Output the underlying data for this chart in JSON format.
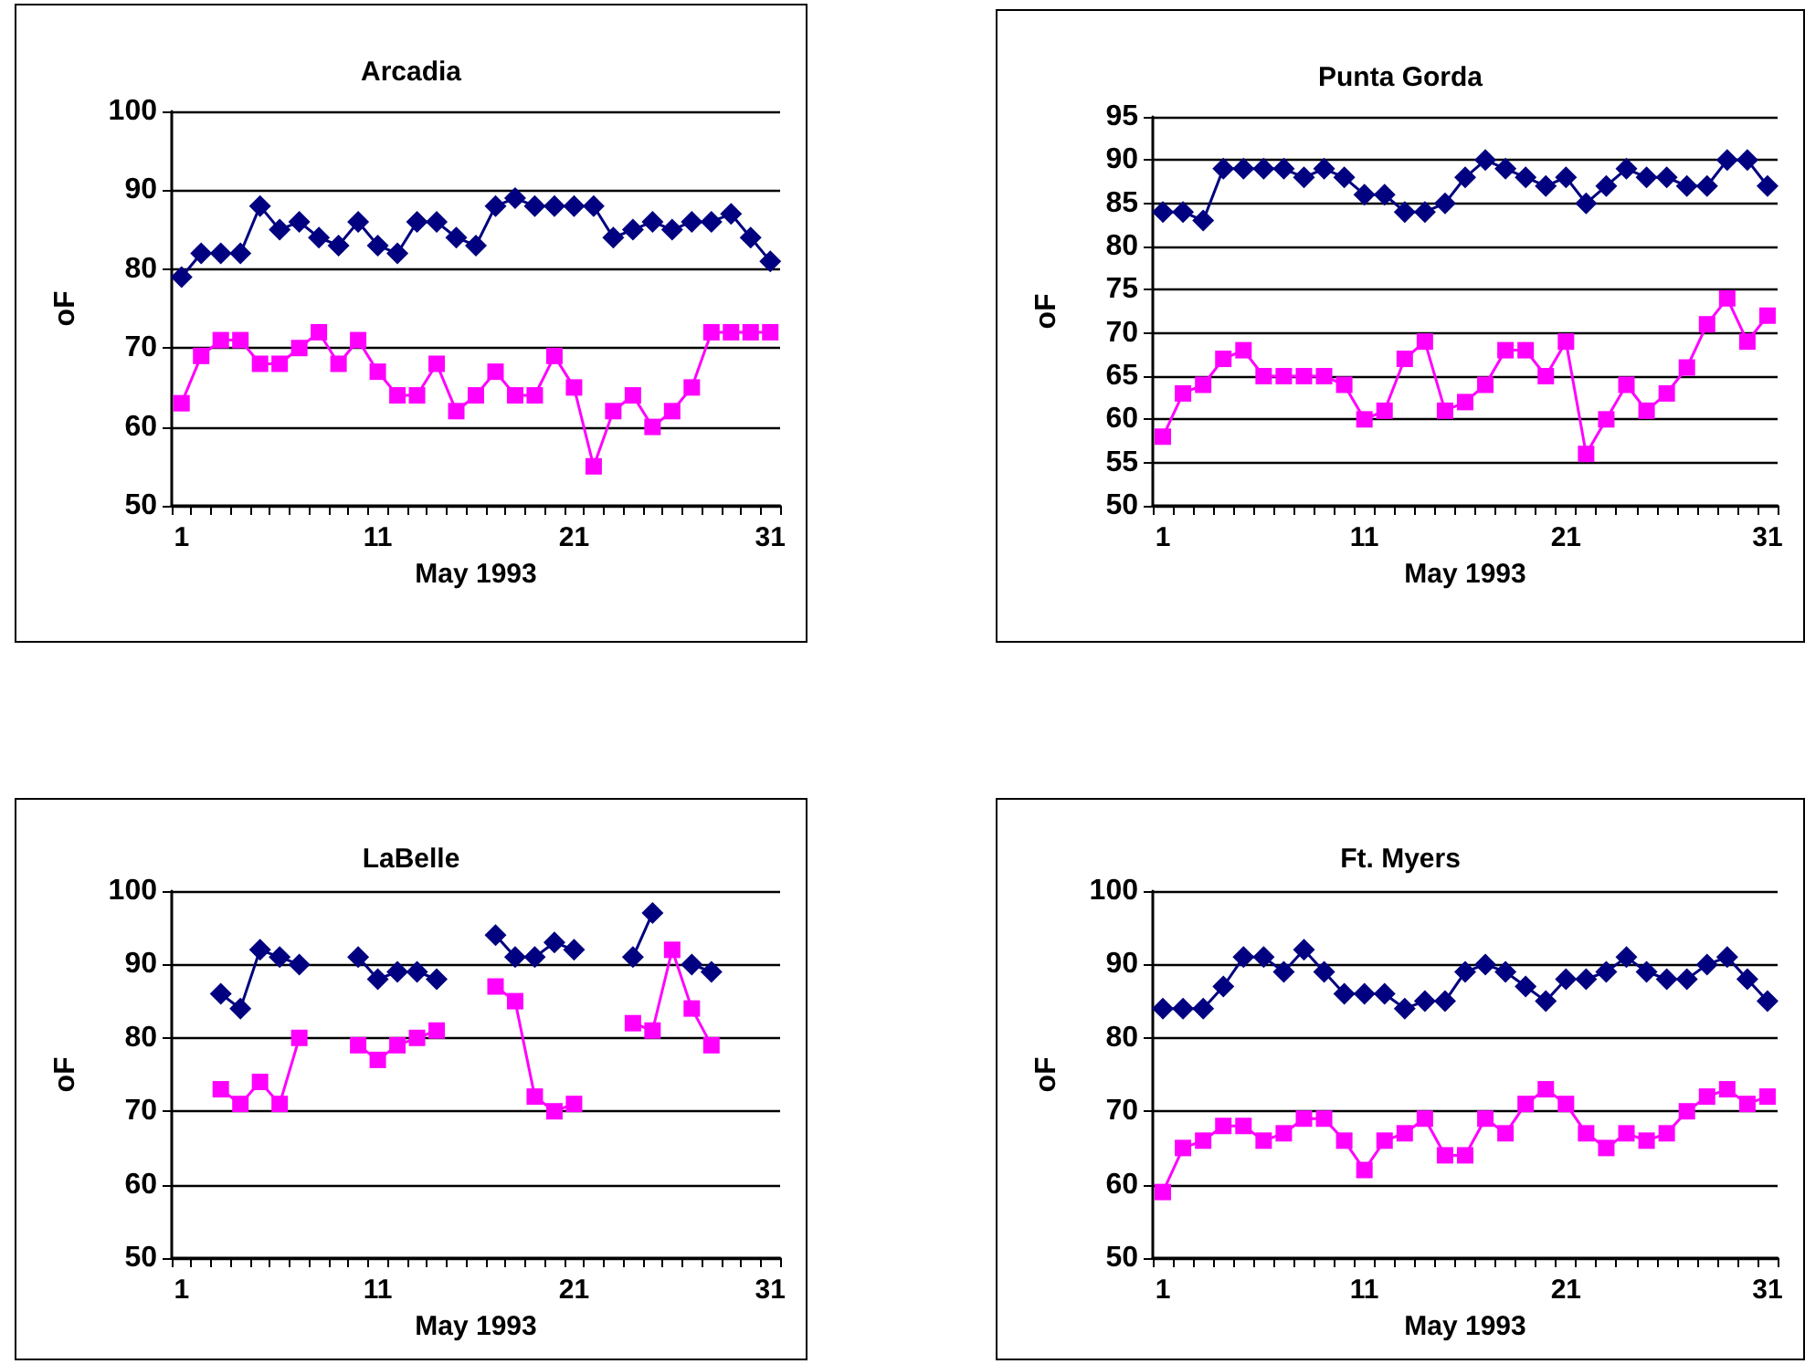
{
  "chart_data": [
    {
      "type": "line",
      "title": "Arcadia",
      "xlabel": "May 1993",
      "ylabel": "oF",
      "categories": [
        "1",
        null,
        null,
        null,
        null,
        null,
        null,
        null,
        null,
        null,
        "11",
        null,
        null,
        null,
        null,
        null,
        null,
        null,
        null,
        null,
        "21",
        null,
        null,
        null,
        null,
        null,
        null,
        null,
        null,
        null,
        "31"
      ],
      "ylim": [
        50,
        100
      ],
      "yticks": [
        50,
        60,
        70,
        80,
        90,
        100
      ],
      "grid": "y",
      "series": [
        {
          "color": "#000080",
          "marker": "diamond",
          "values": [
            79,
            82,
            82,
            82,
            88,
            85,
            86,
            84,
            83,
            86,
            83,
            82,
            86,
            86,
            84,
            83,
            88,
            89,
            88,
            88,
            88,
            88,
            84,
            85,
            86,
            85,
            86,
            86,
            87,
            84,
            81
          ]
        },
        {
          "color": "#ff00ff",
          "marker": "square",
          "values": [
            63,
            69,
            71,
            71,
            68,
            68,
            70,
            72,
            68,
            71,
            67,
            64,
            64,
            68,
            62,
            64,
            67,
            64,
            64,
            69,
            65,
            55,
            62,
            64,
            60,
            62,
            65,
            72,
            72,
            72,
            72
          ]
        }
      ]
    },
    {
      "type": "line",
      "title": "Punta Gorda",
      "xlabel": "May 1993",
      "ylabel": "oF",
      "categories": [
        "1",
        null,
        null,
        null,
        null,
        null,
        null,
        null,
        null,
        null,
        "11",
        null,
        null,
        null,
        null,
        null,
        null,
        null,
        null,
        null,
        "21",
        null,
        null,
        null,
        null,
        null,
        null,
        null,
        null,
        null,
        "31"
      ],
      "ylim": [
        50,
        95
      ],
      "yticks": [
        50,
        55,
        60,
        65,
        70,
        75,
        80,
        85,
        90,
        95
      ],
      "grid": "y",
      "series": [
        {
          "color": "#000080",
          "marker": "diamond",
          "values": [
            84,
            84,
            83,
            89,
            89,
            89,
            89,
            88,
            89,
            88,
            86,
            86,
            84,
            84,
            85,
            88,
            90,
            89,
            88,
            87,
            88,
            85,
            87,
            89,
            88,
            88,
            87,
            87,
            90,
            90,
            87
          ]
        },
        {
          "color": "#ff00ff",
          "marker": "square",
          "values": [
            58,
            63,
            64,
            67,
            68,
            65,
            65,
            65,
            65,
            64,
            60,
            61,
            67,
            69,
            61,
            62,
            64,
            68,
            68,
            65,
            69,
            56,
            60,
            64,
            61,
            63,
            66,
            71,
            74,
            69,
            72
          ]
        }
      ]
    },
    {
      "type": "line",
      "title": "LaBelle",
      "xlabel": "May 1993",
      "ylabel": "oF",
      "categories": [
        "1",
        null,
        null,
        null,
        null,
        null,
        null,
        null,
        null,
        null,
        "11",
        null,
        null,
        null,
        null,
        null,
        null,
        null,
        null,
        null,
        "21",
        null,
        null,
        null,
        null,
        null,
        null,
        null,
        null,
        null,
        "31"
      ],
      "ylim": [
        50,
        100
      ],
      "yticks": [
        50,
        60,
        70,
        80,
        90,
        100
      ],
      "grid": "y",
      "series": [
        {
          "color": "#000080",
          "marker": "diamond",
          "values": [
            null,
            null,
            86,
            84,
            92,
            91,
            90,
            null,
            null,
            91,
            88,
            89,
            89,
            88,
            null,
            null,
            94,
            91,
            91,
            93,
            92,
            null,
            null,
            91,
            97,
            null,
            90,
            89,
            null,
            null,
            null
          ]
        },
        {
          "color": "#ff00ff",
          "marker": "square",
          "values": [
            null,
            null,
            73,
            71,
            74,
            71,
            80,
            null,
            null,
            79,
            77,
            79,
            80,
            81,
            null,
            null,
            87,
            85,
            72,
            70,
            71,
            null,
            null,
            82,
            81,
            92,
            84,
            79,
            null,
            null,
            null
          ]
        }
      ]
    },
    {
      "type": "line",
      "title": "Ft. Myers",
      "xlabel": "May 1993",
      "ylabel": "oF",
      "categories": [
        "1",
        null,
        null,
        null,
        null,
        null,
        null,
        null,
        null,
        null,
        "11",
        null,
        null,
        null,
        null,
        null,
        null,
        null,
        null,
        null,
        "21",
        null,
        null,
        null,
        null,
        null,
        null,
        null,
        null,
        null,
        "31"
      ],
      "ylim": [
        50,
        100
      ],
      "yticks": [
        50,
        60,
        70,
        80,
        90,
        100
      ],
      "grid": "y",
      "series": [
        {
          "color": "#000080",
          "marker": "diamond",
          "values": [
            84,
            84,
            84,
            87,
            91,
            91,
            89,
            92,
            89,
            86,
            86,
            86,
            84,
            85,
            85,
            89,
            90,
            89,
            87,
            85,
            88,
            88,
            89,
            91,
            89,
            88,
            88,
            90,
            91,
            88,
            85
          ]
        },
        {
          "color": "#ff00ff",
          "marker": "square",
          "values": [
            59,
            65,
            66,
            68,
            68,
            66,
            67,
            69,
            69,
            66,
            62,
            66,
            67,
            69,
            64,
            64,
            69,
            67,
            71,
            73,
            71,
            67,
            65,
            67,
            66,
            67,
            70,
            72,
            73,
            71,
            72
          ]
        }
      ]
    }
  ]
}
